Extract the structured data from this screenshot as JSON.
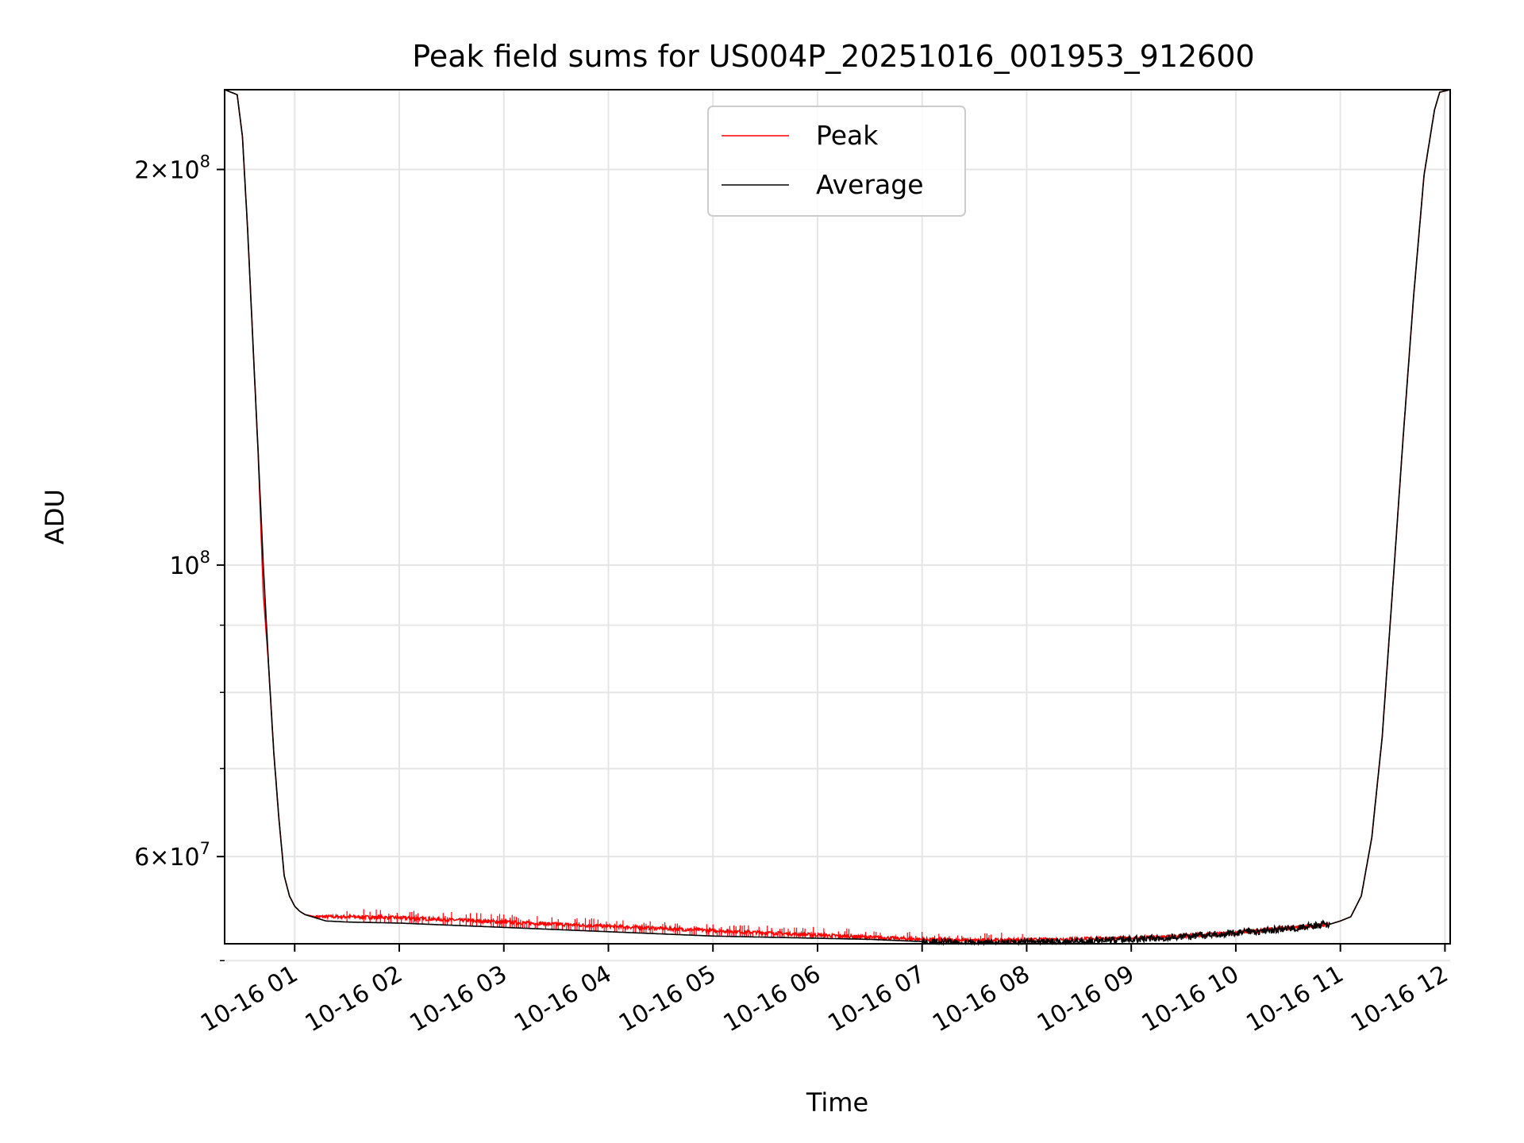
{
  "chart_data": {
    "type": "line",
    "title": "Peak field sums for US004P_20251016_001953_912600",
    "xlabel": "Time",
    "ylabel": "ADU",
    "x_scale": "time (hours since 2025-10-16 00:00)",
    "y_scale": "log",
    "xlim": [
      0.33,
      12.05
    ],
    "ylim": [
      51500000,
      230000000
    ],
    "grid": true,
    "legend_position": "top-center",
    "x_ticks": [
      {
        "value": 1,
        "label": "10-16 01"
      },
      {
        "value": 2,
        "label": "10-16 02"
      },
      {
        "value": 3,
        "label": "10-16 03"
      },
      {
        "value": 4,
        "label": "10-16 04"
      },
      {
        "value": 5,
        "label": "10-16 05"
      },
      {
        "value": 6,
        "label": "10-16 06"
      },
      {
        "value": 7,
        "label": "10-16 07"
      },
      {
        "value": 8,
        "label": "10-16 08"
      },
      {
        "value": 9,
        "label": "10-16 09"
      },
      {
        "value": 10,
        "label": "10-16 10"
      },
      {
        "value": 11,
        "label": "10-16 11"
      },
      {
        "value": 12,
        "label": "10-16 12"
      }
    ],
    "y_major_ticks": [
      {
        "value": 60000000,
        "mantissa": "6",
        "exponent": "7"
      },
      {
        "value": 100000000,
        "mantissa": "",
        "exponent": "8"
      },
      {
        "value": 200000000,
        "mantissa": "2",
        "exponent": "8"
      }
    ],
    "y_minor_ticks": [
      50000000,
      70000000,
      80000000,
      90000000
    ],
    "series": [
      {
        "name": "Average",
        "color": "#000000",
        "x": [
          0.33,
          0.45,
          0.5,
          0.55,
          0.6,
          0.65,
          0.7,
          0.75,
          0.8,
          0.85,
          0.9,
          0.95,
          1.0,
          1.05,
          1.1,
          1.2,
          1.3,
          1.5,
          2.0,
          2.5,
          3.0,
          3.5,
          4.0,
          4.5,
          5.0,
          5.5,
          6.0,
          6.5,
          7.0,
          7.5,
          8.0,
          8.5,
          9.0,
          9.5,
          10.0,
          10.3,
          10.5,
          10.7,
          10.9,
          11.0,
          11.1,
          11.2,
          11.3,
          11.4,
          11.5,
          11.6,
          11.7,
          11.8,
          11.9,
          11.95,
          12.05
        ],
        "y": [
          230000000,
          228000000,
          212000000,
          180000000,
          148000000,
          122000000,
          100000000,
          84000000,
          72000000,
          64000000,
          58000000,
          56000000,
          55000000,
          54500000,
          54200000,
          53900000,
          53600000,
          53500000,
          53400000,
          53200000,
          53000000,
          52800000,
          52600000,
          52400000,
          52200000,
          52100000,
          52000000,
          51900000,
          51700000,
          51550000,
          51650000,
          51750000,
          51900000,
          52150000,
          52500000,
          52700000,
          52900000,
          53100000,
          53300000,
          53600000,
          54000000,
          56000000,
          62000000,
          74000000,
          96000000,
          125000000,
          160000000,
          198000000,
          222000000,
          229000000,
          230000000
        ]
      },
      {
        "name": "Peak",
        "color": "#ff0000",
        "x": [
          0.33,
          0.45,
          0.5,
          0.55,
          0.6,
          0.65,
          0.7,
          0.75,
          0.8,
          0.85,
          0.9,
          0.95,
          1.0,
          1.05,
          1.1,
          1.2,
          1.3,
          1.5,
          2.0,
          2.5,
          3.0,
          3.5,
          4.0,
          4.5,
          5.0,
          5.5,
          6.0,
          6.5,
          7.0,
          7.5,
          8.0,
          8.5,
          9.0,
          9.5,
          10.0,
          10.3,
          10.5,
          10.7,
          10.9,
          11.0,
          11.1,
          11.2,
          11.3,
          11.4,
          11.5,
          11.6,
          11.7,
          11.8,
          11.9,
          11.95,
          12.05
        ],
        "y": [
          230000000,
          228000000,
          212000000,
          180000000,
          148000000,
          122000000,
          95000000,
          84000000,
          72000000,
          64000000,
          58000000,
          56000000,
          55000000,
          54500000,
          54200000,
          54000000,
          54000000,
          54000000,
          53900000,
          53700000,
          53500000,
          53300000,
          53100000,
          52900000,
          52700000,
          52500000,
          52300000,
          52100000,
          51900000,
          51800000,
          51850000,
          51950000,
          52000000,
          52200000,
          52500000,
          52800000,
          52950000,
          53100000,
          53300000,
          53600000,
          54000000,
          56000000,
          62000000,
          74000000,
          96000000,
          125000000,
          160000000,
          198000000,
          222000000,
          229000000,
          230000000
        ],
        "spike_band": {
          "x_range": [
            1.5,
            8.0
          ],
          "y_top_range": [
            53700000,
            55200000
          ],
          "note": "frequent upward spikes above the average"
        }
      }
    ]
  }
}
